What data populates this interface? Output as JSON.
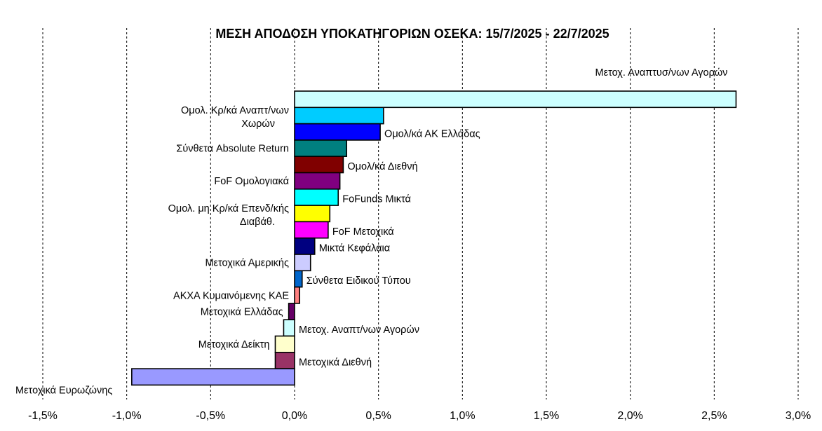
{
  "chart_data": {
    "type": "bar",
    "orientation": "horizontal",
    "title": "ΜΕΣΗ ΑΠΟΔΟΣΗ ΥΠΟΚΑΤΗΓΟΡΙΩΝ ΟΣΕΚΑ: 15/7/2025 - 22/7/2025",
    "xlim": [
      -1.5,
      3.0
    ],
    "x_ticks": [
      "-1,5%",
      "-1,0%",
      "-0,5%",
      "0,0%",
      "0,5%",
      "1,0%",
      "1,5%",
      "2,0%",
      "2,5%",
      "3,0%"
    ],
    "grid": "vertical dashed",
    "bars": [
      {
        "label": "Μετοχ. Αναπτυσ/νων Αγορών",
        "value": 2.63,
        "color": "#ccffff",
        "label_side": "above"
      },
      {
        "label": "Ομολ. Κρ/κά Αναπτ/νων Χωρών",
        "value": 0.53,
        "color": "#00ccff",
        "label_side": "left"
      },
      {
        "label": "Ομολ/κά ΑΚ Ελλάδας",
        "value": 0.51,
        "color": "#0000ff",
        "label_side": "right"
      },
      {
        "label": "Σύνθετα Absolute Return",
        "value": 0.31,
        "color": "#008080",
        "label_side": "left"
      },
      {
        "label": "Ομολ/κά Διεθνή",
        "value": 0.29,
        "color": "#800000",
        "label_side": "right"
      },
      {
        "label": "FoF Ομολογιακά",
        "value": 0.27,
        "color": "#800080",
        "label_side": "left"
      },
      {
        "label": "FoFunds Μικτά",
        "value": 0.26,
        "color": "#00ffff",
        "label_side": "right"
      },
      {
        "label": "Ομολ. μη Κρ/κά Επενδ/κής Διαβάθ.",
        "value": 0.21,
        "color": "#ffff00",
        "label_side": "left"
      },
      {
        "label": "FoF Μετοχικά",
        "value": 0.2,
        "color": "#ff00ff",
        "label_side": "right"
      },
      {
        "label": "Μικτά Κεφάλαια",
        "value": 0.12,
        "color": "#000080",
        "label_side": "right"
      },
      {
        "label": "Μετοχικά Αμερικής",
        "value": 0.095,
        "color": "#ccccff",
        "label_side": "left"
      },
      {
        "label": "Σύνθετα Ειδικού Τύπου",
        "value": 0.045,
        "color": "#0066cc",
        "label_side": "right"
      },
      {
        "label": "ΑΚΧΑ Κυμαινόμενης ΚΑΕ",
        "value": 0.03,
        "color": "#ff8080",
        "label_side": "left"
      },
      {
        "label": "Μετοχικά Ελλάδας",
        "value": -0.035,
        "color": "#660066",
        "label_side": "left"
      },
      {
        "label": "Μετοχ. Αναπτ/νων Αγορών",
        "value": -0.065,
        "color": "#ccffff",
        "label_side": "right"
      },
      {
        "label": "Μετοχικά Δείκτη",
        "value": -0.115,
        "color": "#ffffcc",
        "label_side": "left"
      },
      {
        "label": "Μετοχικά Διεθνή",
        "value": -0.115,
        "color": "#993366",
        "label_side": "right"
      },
      {
        "label": "Μετοχικά Ευρωζώνης",
        "value": -0.97,
        "color": "#9999ff",
        "label_side": "left-far"
      }
    ]
  }
}
